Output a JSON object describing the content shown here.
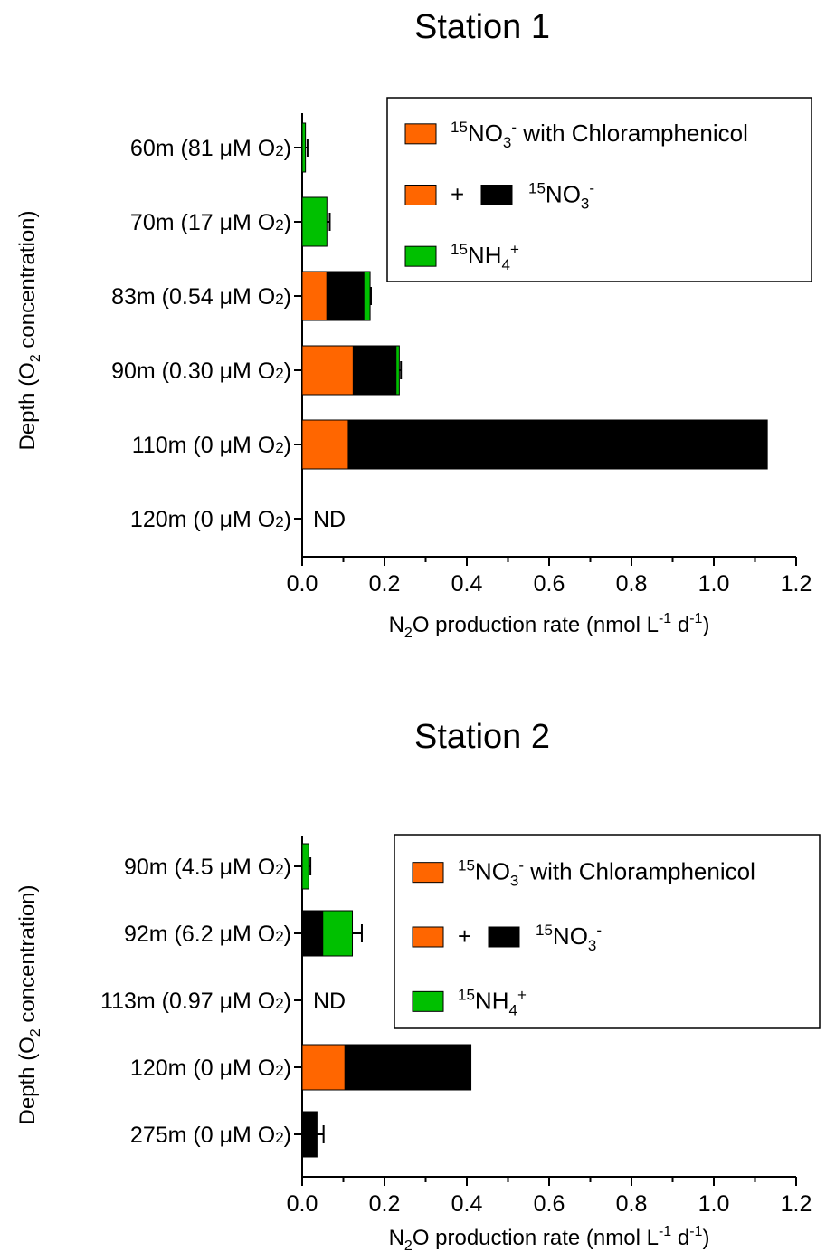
{
  "colors": {
    "chloramphenicol": "#ff6600",
    "no3": "#000000",
    "nh4": "#00c000"
  },
  "chart_data": [
    {
      "type": "bar",
      "orientation": "horizontal",
      "stacked": true,
      "title": "Station 1",
      "ylabel": {
        "pre": "Depth (O",
        "sub": "2",
        "post": " concentration)"
      },
      "xlabel": {
        "pre": "N",
        "sub": "2",
        "mid": "O production rate (nmol L",
        "sup1": "-1",
        "mid2": " d",
        "sup2": "-1",
        "post": ")"
      },
      "xlim": [
        0,
        1.2
      ],
      "xticks": [
        "0.0",
        "0.2",
        "0.4",
        "0.6",
        "0.8",
        "1.0",
        "1.2"
      ],
      "grid": false,
      "legend_position": "top-right",
      "legend": {
        "chloramphenicol": {
          "sup": "15",
          "base": "NO",
          "sub": "3",
          "sup2": "-",
          "rest": " with Chloramphenicol"
        },
        "plus": "+",
        "no3": {
          "sup": "15",
          "base": "NO",
          "sub": "3",
          "sup2": "-"
        },
        "nh4": {
          "sup": "15",
          "base": "NH",
          "sub": "4",
          "sup2": "+"
        }
      },
      "categories": [
        "60m (81 μM O2)",
        "70m (17 μM O2)",
        "83m (0.54 μM O2)",
        "90m (0.30 μM O2)",
        "110m (0 μM O2)",
        "120m (0 μM O2)"
      ],
      "series": [
        {
          "key": "chloramphenicol",
          "values": [
            0,
            0,
            0.06,
            0.124,
            0.112,
            null
          ]
        },
        {
          "key": "no3",
          "values": [
            0,
            0,
            0.09,
            0.104,
            1.018,
            null
          ]
        },
        {
          "key": "nh4",
          "values": [
            0.008,
            0.06,
            0.015,
            0.008,
            0,
            null
          ]
        }
      ],
      "error_bars": [
        0.013,
        0.067,
        0.167,
        0.24,
        null,
        null
      ],
      "annotations": {
        "nd_label": "ND",
        "nd_index": 5
      }
    },
    {
      "type": "bar",
      "orientation": "horizontal",
      "stacked": true,
      "title": "Station 2",
      "ylabel": {
        "pre": "Depth (O",
        "sub": "2",
        "post": " concentration)"
      },
      "xlabel": {
        "pre": "N",
        "sub": "2",
        "mid": "O production rate (nmol L",
        "sup1": "-1",
        "mid2": " d",
        "sup2": "-1",
        "post": ")"
      },
      "xlim": [
        0,
        1.2
      ],
      "xticks": [
        "0.0",
        "0.2",
        "0.4",
        "0.6",
        "0.8",
        "1.0",
        "1.2"
      ],
      "grid": false,
      "legend_position": "top-right",
      "legend": {
        "chloramphenicol": {
          "sup": "15",
          "base": "NO",
          "sub": "3",
          "sup2": "-",
          "rest": " with Chloramphenicol"
        },
        "plus": "+",
        "no3": {
          "sup": "15",
          "base": "NO",
          "sub": "3",
          "sup2": "-"
        },
        "nh4": {
          "sup": "15",
          "base": "NH",
          "sub": "4",
          "sup2": "+"
        }
      },
      "categories": [
        "90m (4.5 μM O2)",
        "92m (6.2 μM O2)",
        "113m (0.97 μM O2)",
        "120m (0 μM O2)",
        "275m (0 μM O2)"
      ],
      "series": [
        {
          "key": "chloramphenicol",
          "values": [
            0,
            0,
            null,
            0.104,
            0
          ]
        },
        {
          "key": "no3",
          "values": [
            0,
            0.05,
            null,
            0.306,
            0.036
          ]
        },
        {
          "key": "nh4",
          "values": [
            0.016,
            0.072,
            null,
            0,
            0
          ]
        }
      ],
      "error_bars": [
        0.02,
        0.145,
        null,
        null,
        0.052
      ],
      "annotations": {
        "nd_label": "ND",
        "nd_index": 2
      }
    }
  ]
}
